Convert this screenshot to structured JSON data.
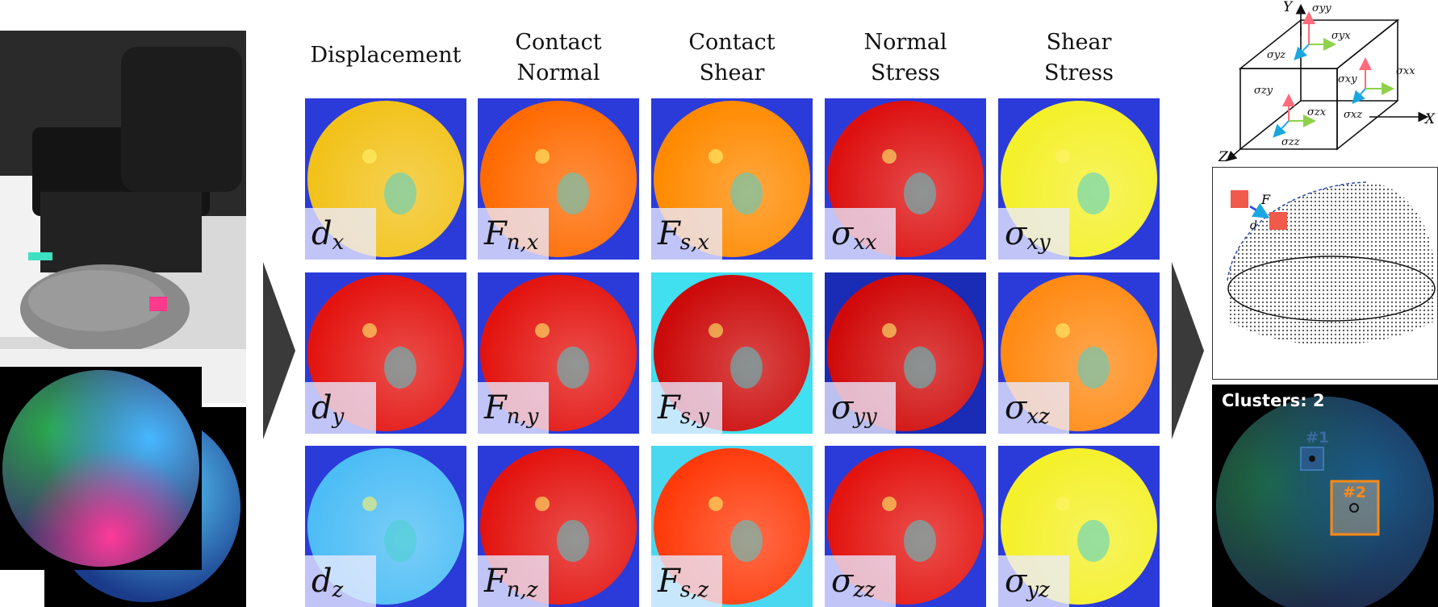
{
  "columns": [
    {
      "title_line1": "Displacement",
      "title_line2": ""
    },
    {
      "title_line1": "Contact",
      "title_line2": "Normal"
    },
    {
      "title_line1": "Contact",
      "title_line2": "Shear"
    },
    {
      "title_line1": "Normal",
      "title_line2": "Stress"
    },
    {
      "title_line1": "Shear",
      "title_line2": "Stress"
    }
  ],
  "cells": [
    [
      {
        "sym": "d",
        "sub": "x",
        "bg": "#2b3bd9",
        "disc": "#f2c21a"
      },
      {
        "sym": "F",
        "sub": "n,x",
        "bg": "#2b3bd9",
        "disc": "#ff6a00"
      },
      {
        "sym": "F",
        "sub": "s,x",
        "bg": "#2b3bd9",
        "disc": "#ff8a00"
      },
      {
        "sym": "σ",
        "sub": "xx",
        "bg": "#2b3bd9",
        "disc": "#dd1010"
      },
      {
        "sym": "σ",
        "sub": "xy",
        "bg": "#2b3bd9",
        "disc": "#f4f02a"
      }
    ],
    [
      {
        "sym": "d",
        "sub": "y",
        "bg": "#2b3bd9",
        "disc": "#e31410"
      },
      {
        "sym": "F",
        "sub": "n,y",
        "bg": "#2b3bd9",
        "disc": "#e31410"
      },
      {
        "sym": "F",
        "sub": "s,y",
        "bg": "#40e0f0",
        "disc": "#cc0a0a"
      },
      {
        "sym": "σ",
        "sub": "yy",
        "bg": "#1a2bb5",
        "disc": "#d00a0a"
      },
      {
        "sym": "σ",
        "sub": "xz",
        "bg": "#2b3bd9",
        "disc": "#ff8a14"
      }
    ],
    [
      {
        "sym": "d",
        "sub": "z",
        "bg": "#2b3bd9",
        "disc": "#4dbdf5"
      },
      {
        "sym": "F",
        "sub": "n,z",
        "bg": "#2b3bd9",
        "disc": "#e31410"
      },
      {
        "sym": "F",
        "sub": "s,z",
        "bg": "#4ad8f0",
        "disc": "#ff3a0a"
      },
      {
        "sym": "σ",
        "sub": "zz",
        "bg": "#2b3bd9",
        "disc": "#e31410"
      },
      {
        "sym": "σ",
        "sub": "yz",
        "bg": "#2b3bd9",
        "disc": "#f4f02a"
      }
    ]
  ],
  "stress_cube": {
    "axes": {
      "x": "X",
      "y": "Y",
      "z": "Z"
    },
    "labels": [
      "σyy",
      "σyx",
      "σyz",
      "σxx",
      "σxy",
      "σzy",
      "σxz",
      "σzx",
      "σzz"
    ]
  },
  "mesh": {
    "force_label": "F",
    "disp_label": "d"
  },
  "clusters": {
    "title": "Clusters: 2",
    "markers": [
      "#1",
      "#2"
    ]
  }
}
